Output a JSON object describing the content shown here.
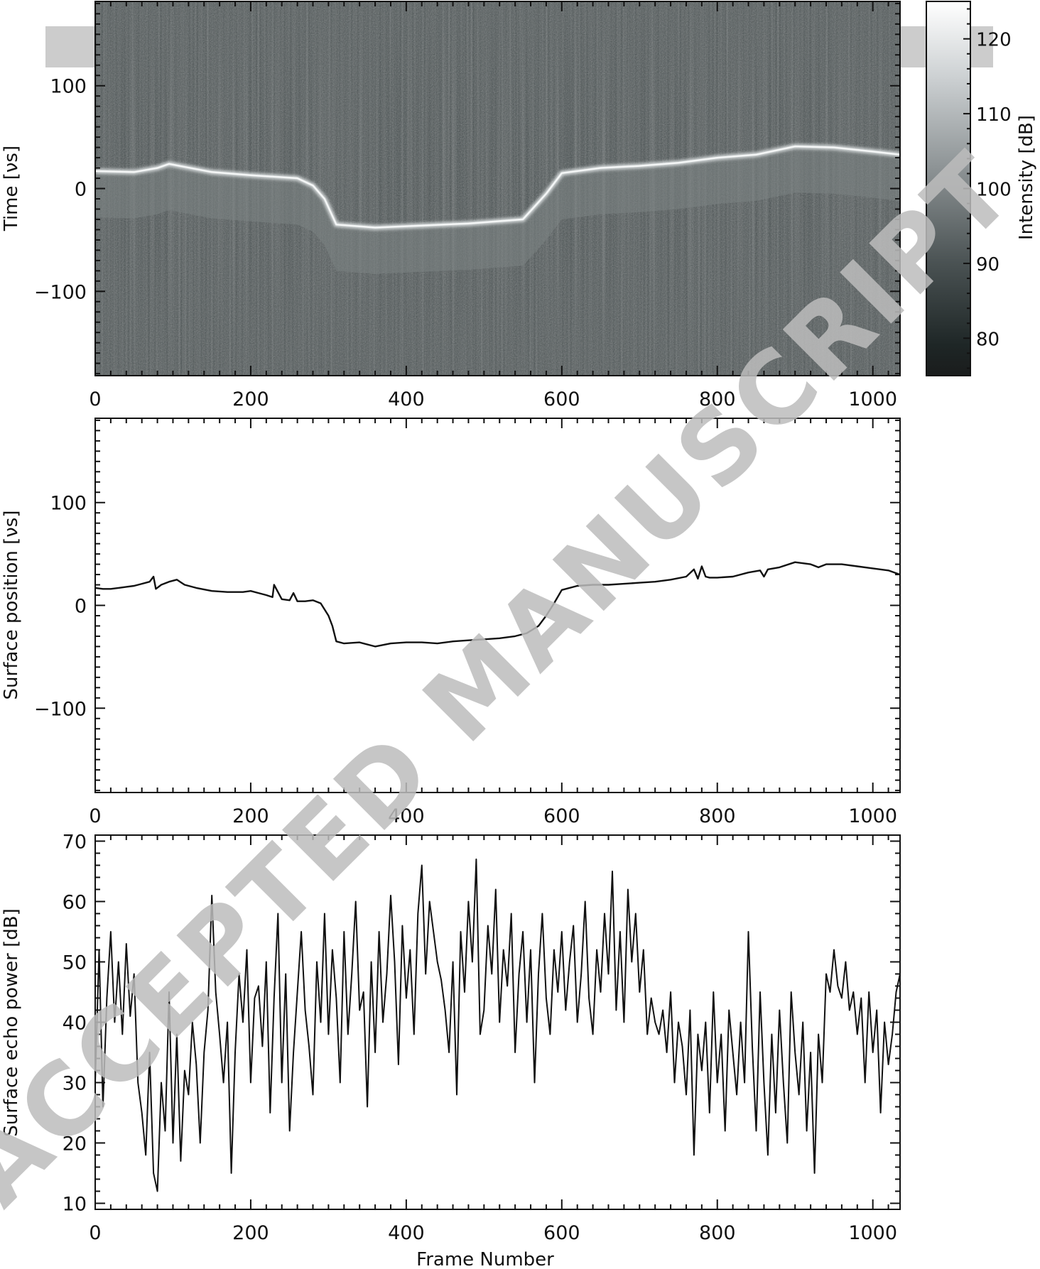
{
  "watermark": "ACCEPTED MANUSCRIPT",
  "chart_data": [
    {
      "type": "heatmap",
      "title": "",
      "xlabel": "",
      "ylabel": "Time [νs]",
      "xlim": [
        0,
        1035
      ],
      "ylim": [
        -182,
        182
      ],
      "xticks": [
        0,
        200,
        400,
        600,
        800,
        1000
      ],
      "yticks": [
        -100,
        0,
        100
      ],
      "colormap": "grayscale",
      "colorbar": {
        "label": "Intensity [dB]",
        "range": [
          75,
          125
        ],
        "ticks": [
          80,
          90,
          100,
          110,
          120
        ]
      },
      "surface_trace": {
        "x": [
          0,
          50,
          80,
          95,
          150,
          200,
          260,
          280,
          295,
          310,
          360,
          420,
          480,
          550,
          580,
          600,
          650,
          700,
          750,
          800,
          850,
          900,
          950,
          1000,
          1035
        ],
        "y": [
          17,
          16,
          20,
          24,
          16,
          13,
          10,
          3,
          -10,
          -35,
          -38,
          -36,
          -34,
          -30,
          -5,
          15,
          20,
          22,
          25,
          30,
          33,
          41,
          40,
          36,
          33
        ]
      }
    },
    {
      "type": "line",
      "title": "",
      "xlabel": "",
      "ylabel": "Surface position [νs]",
      "xlim": [
        0,
        1035
      ],
      "ylim": [
        -182,
        182
      ],
      "xticks": [
        0,
        200,
        400,
        600,
        800,
        1000
      ],
      "yticks": [
        -100,
        0,
        100
      ],
      "x": [
        0,
        10,
        20,
        30,
        40,
        50,
        60,
        70,
        75,
        78,
        85,
        95,
        105,
        115,
        130,
        150,
        170,
        190,
        200,
        210,
        220,
        228,
        230,
        240,
        250,
        255,
        260,
        270,
        280,
        290,
        300,
        305,
        310,
        320,
        340,
        360,
        380,
        400,
        420,
        440,
        460,
        480,
        500,
        520,
        540,
        555,
        570,
        580,
        590,
        600,
        620,
        640,
        660,
        680,
        700,
        720,
        740,
        760,
        770,
        775,
        780,
        785,
        790,
        800,
        820,
        840,
        855,
        860,
        865,
        880,
        900,
        920,
        930,
        940,
        960,
        980,
        1000,
        1020,
        1035
      ],
      "y": [
        17,
        16,
        16,
        17,
        18,
        19,
        21,
        23,
        28,
        16,
        20,
        23,
        25,
        20,
        17,
        14,
        13,
        13,
        14,
        12,
        10,
        8,
        20,
        6,
        5,
        12,
        4,
        4,
        5,
        2,
        -10,
        -20,
        -35,
        -37,
        -36,
        -40,
        -37,
        -36,
        -36,
        -37,
        -35,
        -34,
        -33,
        -32,
        -30,
        -27,
        -20,
        -10,
        2,
        15,
        19,
        20,
        20,
        21,
        22,
        23,
        25,
        28,
        35,
        26,
        38,
        28,
        27,
        27,
        28,
        32,
        34,
        28,
        35,
        37,
        42,
        40,
        37,
        40,
        40,
        38,
        36,
        34,
        30
      ]
    },
    {
      "type": "line",
      "title": "",
      "xlabel": "Frame Number",
      "ylabel": "Surface echo power [dB]",
      "xlim": [
        0,
        1035
      ],
      "ylim": [
        9,
        71
      ],
      "xticks": [
        0,
        200,
        400,
        600,
        800,
        1000
      ],
      "yticks": [
        10,
        20,
        30,
        40,
        50,
        60,
        70
      ],
      "x": [
        0,
        5,
        10,
        15,
        20,
        25,
        30,
        35,
        40,
        45,
        50,
        55,
        60,
        65,
        70,
        75,
        80,
        85,
        90,
        95,
        100,
        105,
        110,
        115,
        120,
        125,
        130,
        135,
        140,
        145,
        150,
        155,
        160,
        165,
        170,
        175,
        180,
        185,
        190,
        195,
        200,
        205,
        210,
        215,
        220,
        225,
        230,
        235,
        240,
        245,
        250,
        255,
        260,
        265,
        270,
        275,
        280,
        285,
        290,
        295,
        300,
        305,
        310,
        315,
        320,
        325,
        330,
        335,
        340,
        345,
        350,
        355,
        360,
        365,
        370,
        375,
        380,
        385,
        390,
        395,
        400,
        405,
        410,
        415,
        420,
        425,
        430,
        435,
        440,
        445,
        450,
        455,
        460,
        465,
        470,
        475,
        480,
        485,
        490,
        495,
        500,
        505,
        510,
        515,
        520,
        525,
        530,
        535,
        540,
        545,
        550,
        555,
        560,
        565,
        570,
        575,
        580,
        585,
        590,
        595,
        600,
        605,
        610,
        615,
        620,
        625,
        630,
        635,
        640,
        645,
        650,
        655,
        660,
        665,
        670,
        675,
        680,
        685,
        690,
        695,
        700,
        705,
        710,
        715,
        720,
        725,
        730,
        735,
        740,
        745,
        750,
        755,
        760,
        765,
        770,
        775,
        780,
        785,
        790,
        795,
        800,
        805,
        810,
        815,
        820,
        825,
        830,
        835,
        840,
        845,
        850,
        855,
        860,
        865,
        870,
        875,
        880,
        885,
        890,
        895,
        900,
        905,
        910,
        915,
        920,
        925,
        930,
        935,
        940,
        945,
        950,
        955,
        960,
        965,
        970,
        975,
        980,
        985,
        990,
        995,
        1000,
        1005,
        1010,
        1015,
        1020,
        1025,
        1030,
        1035
      ],
      "y": [
        30,
        52,
        26,
        44,
        55,
        40,
        50,
        38,
        53,
        41,
        48,
        30,
        25,
        18,
        35,
        15,
        12,
        30,
        22,
        45,
        20,
        38,
        17,
        32,
        28,
        40,
        33,
        20,
        35,
        42,
        61,
        45,
        38,
        30,
        40,
        15,
        35,
        48,
        40,
        52,
        30,
        44,
        46,
        36,
        50,
        25,
        44,
        58,
        30,
        48,
        22,
        35,
        45,
        55,
        42,
        36,
        28,
        50,
        40,
        58,
        38,
        52,
        44,
        30,
        55,
        38,
        48,
        60,
        42,
        45,
        26,
        50,
        35,
        55,
        40,
        48,
        61,
        50,
        33,
        56,
        44,
        52,
        38,
        58,
        66,
        48,
        60,
        55,
        50,
        47,
        42,
        35,
        50,
        28,
        55,
        45,
        60,
        50,
        67,
        38,
        42,
        56,
        48,
        62,
        40,
        52,
        46,
        58,
        35,
        48,
        55,
        40,
        52,
        30,
        48,
        58,
        44,
        38,
        52,
        45,
        55,
        42,
        50,
        56,
        40,
        48,
        60,
        44,
        38,
        52,
        45,
        58,
        48,
        65,
        42,
        55,
        40,
        62,
        50,
        58,
        45,
        52,
        38,
        44,
        40,
        38,
        42,
        35,
        45,
        30,
        40,
        36,
        28,
        42,
        18,
        38,
        32,
        40,
        25,
        45,
        30,
        38,
        22,
        42,
        35,
        28,
        40,
        30,
        55,
        36,
        22,
        45,
        30,
        18,
        38,
        25,
        42,
        30,
        20,
        45,
        35,
        28,
        40,
        22,
        35,
        15,
        38,
        30,
        48,
        45,
        52,
        46,
        44,
        50,
        42,
        45,
        38,
        44,
        30,
        45,
        35,
        42,
        25,
        40,
        33,
        38,
        45,
        48
      ]
    }
  ]
}
